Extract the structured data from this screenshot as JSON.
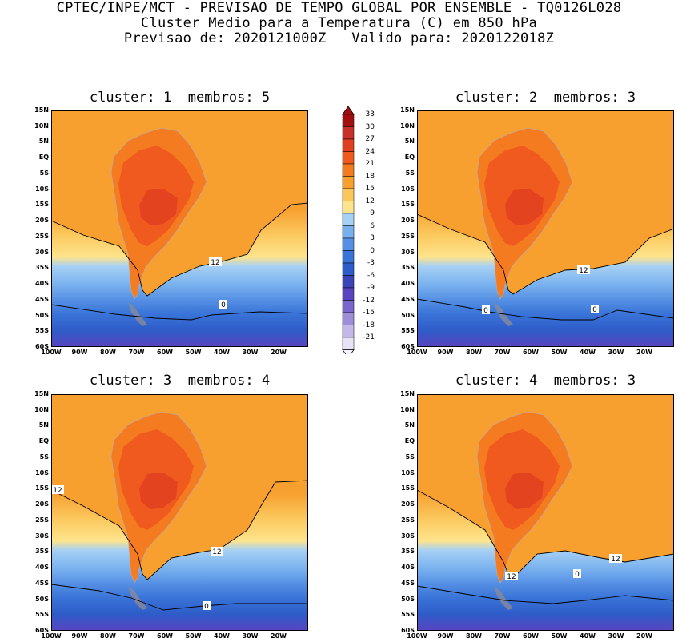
{
  "header": {
    "line1": "CPTEC/INPE/MCT - PREVISAO DE TEMPO GLOBAL POR ENSEMBLE - TQ0126L028",
    "line2": "Cluster Medio para a Temperatura (C) em 850 hPa",
    "line3": "Previsao de: 2020121000Z   Valido para: 2020122018Z"
  },
  "panels": [
    {
      "title": "cluster: 1  membros: 5",
      "contour_labels": [
        "12",
        "0"
      ]
    },
    {
      "title": "cluster: 2  membros: 3",
      "contour_labels": [
        "12",
        "0",
        "0"
      ]
    },
    {
      "title": "cluster: 3  membros: 4",
      "contour_labels": [
        "12",
        "12",
        "0"
      ]
    },
    {
      "title": "cluster: 4  membros: 3",
      "contour_labels": [
        "12",
        "12",
        "0"
      ]
    }
  ],
  "lat_labels": [
    "15N",
    "10N",
    "5N",
    "EQ",
    "5S",
    "10S",
    "15S",
    "20S",
    "25S",
    "30S",
    "35S",
    "40S",
    "45S",
    "50S",
    "55S",
    "60S"
  ],
  "lon_labels": [
    "100W",
    "90W",
    "80W",
    "70W",
    "60W",
    "50W",
    "40W",
    "30W",
    "20W"
  ],
  "colorbar": {
    "levels": [
      "33",
      "30",
      "27",
      "24",
      "21",
      "18",
      "15",
      "12",
      "9",
      "6",
      "3",
      "0",
      "-3",
      "-6",
      "-9",
      "-12",
      "-15",
      "-18",
      "-21"
    ],
    "colors": [
      "#a01010",
      "#c8302a",
      "#e04020",
      "#f05a1e",
      "#f47b20",
      "#f7a030",
      "#fbc65a",
      "#fde48c",
      "#a6d0f5",
      "#78b0ee",
      "#5590e4",
      "#3a74d8",
      "#2e5cc8",
      "#3d44b8",
      "#5a44c0",
      "#7a66cc",
      "#9e8ed8",
      "#c4b8e8",
      "#e8e2f6"
    ]
  }
}
